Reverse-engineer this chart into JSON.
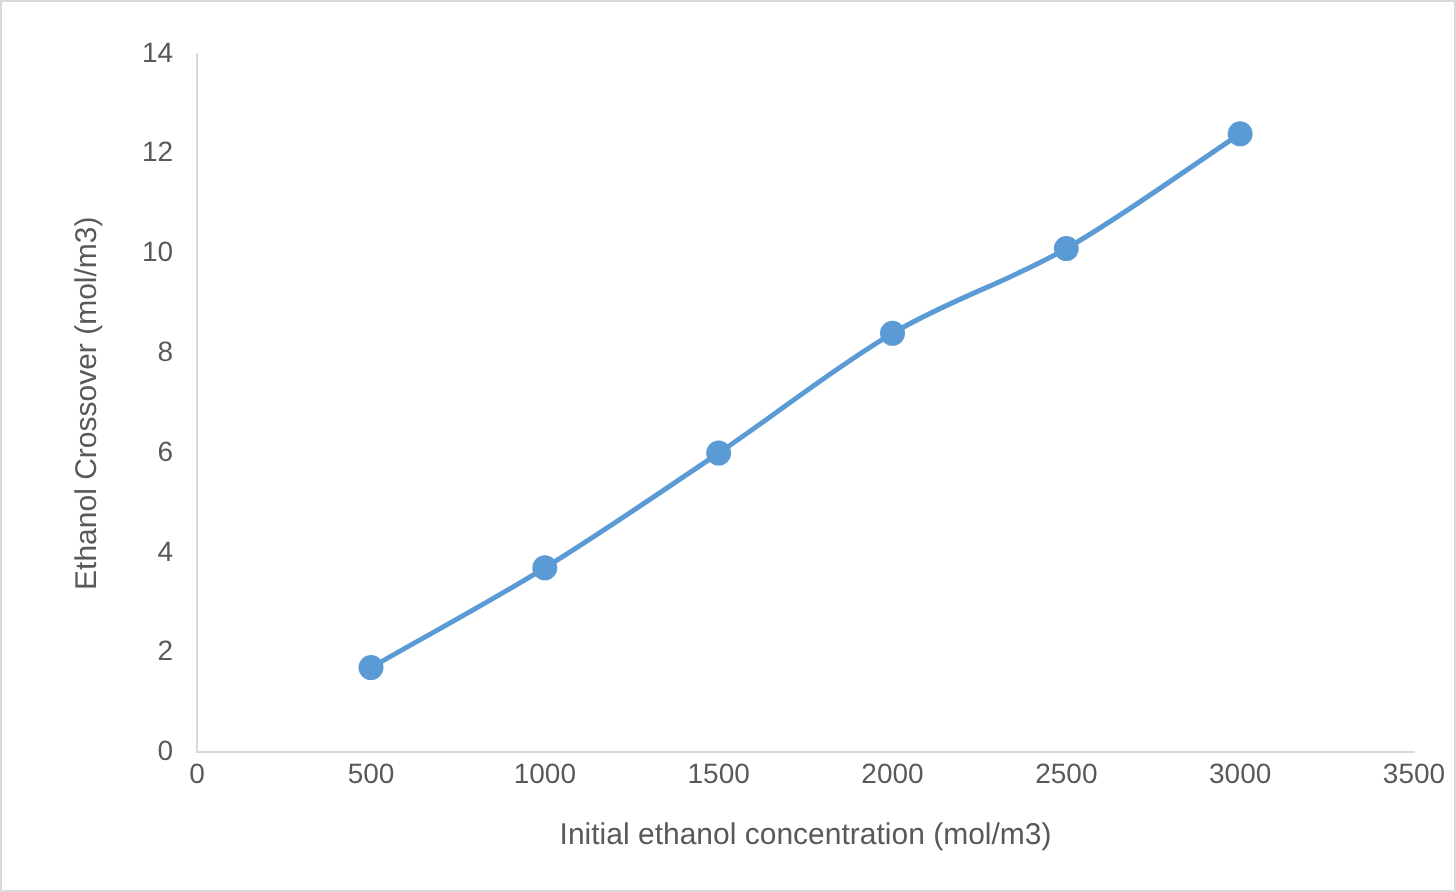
{
  "chart_data": {
    "type": "line",
    "xlabel": "Initial ethanol concentration (mol/m3)",
    "ylabel": "Ethanol Crossover (mol/m3)",
    "x": [
      500,
      1000,
      1500,
      2000,
      2500,
      3000
    ],
    "series": [
      {
        "color": "#5b9bd5",
        "values": [
          1.7,
          3.7,
          6.0,
          8.4,
          10.1,
          12.4
        ]
      }
    ],
    "xlim": [
      0,
      3500
    ],
    "xticks": [
      0,
      500,
      1000,
      1500,
      2000,
      2500,
      3000,
      3500
    ],
    "ylim": [
      0,
      14
    ],
    "yticks": [
      0,
      2,
      4,
      6,
      8,
      10,
      12,
      14
    ],
    "grid": false,
    "legend": false,
    "marker": "circle",
    "line_style": "solid"
  }
}
